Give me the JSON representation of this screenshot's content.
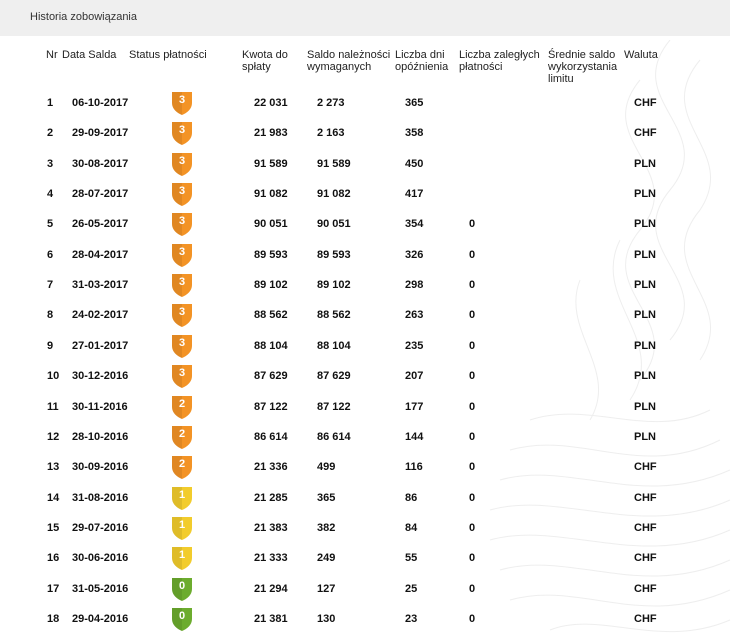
{
  "title": "Historia zobowiązania",
  "columns": {
    "nr": "Nr",
    "date": "Data Salda",
    "status": "Status płatności",
    "amount": [
      "Kwota do",
      "spłaty"
    ],
    "due": [
      "Saldo należności",
      "wymaganych"
    ],
    "days": [
      "Liczba dni",
      "opóźnienia"
    ],
    "overdue": [
      "Liczba zaległych",
      "płatności"
    ],
    "avg": [
      "Średnie saldo",
      "wykorzystania",
      "limitu"
    ],
    "currency": "Waluta"
  },
  "status_colors": {
    "3": "#f39325",
    "2": "#f39325",
    "1": "#f2cc2c",
    "0": "#6cac2e"
  },
  "rows": [
    {
      "nr": "1",
      "date": "06-10-2017",
      "status": "3",
      "amount": "22 031",
      "due": "2 273",
      "days": "365",
      "overdue": "",
      "avg": "",
      "currency": "CHF"
    },
    {
      "nr": "2",
      "date": "29-09-2017",
      "status": "3",
      "amount": "21 983",
      "due": "2 163",
      "days": "358",
      "overdue": "",
      "avg": "",
      "currency": "CHF"
    },
    {
      "nr": "3",
      "date": "30-08-2017",
      "status": "3",
      "amount": "91 589",
      "due": "91 589",
      "days": "450",
      "overdue": "",
      "avg": "",
      "currency": "PLN"
    },
    {
      "nr": "4",
      "date": "28-07-2017",
      "status": "3",
      "amount": "91 082",
      "due": "91 082",
      "days": "417",
      "overdue": "",
      "avg": "",
      "currency": "PLN"
    },
    {
      "nr": "5",
      "date": "26-05-2017",
      "status": "3",
      "amount": "90 051",
      "due": "90 051",
      "days": "354",
      "overdue": "0",
      "avg": "",
      "currency": "PLN"
    },
    {
      "nr": "6",
      "date": "28-04-2017",
      "status": "3",
      "amount": "89 593",
      "due": "89 593",
      "days": "326",
      "overdue": "0",
      "avg": "",
      "currency": "PLN"
    },
    {
      "nr": "7",
      "date": "31-03-2017",
      "status": "3",
      "amount": "89 102",
      "due": "89 102",
      "days": "298",
      "overdue": "0",
      "avg": "",
      "currency": "PLN"
    },
    {
      "nr": "8",
      "date": "24-02-2017",
      "status": "3",
      "amount": "88 562",
      "due": "88 562",
      "days": "263",
      "overdue": "0",
      "avg": "",
      "currency": "PLN"
    },
    {
      "nr": "9",
      "date": "27-01-2017",
      "status": "3",
      "amount": "88 104",
      "due": "88 104",
      "days": "235",
      "overdue": "0",
      "avg": "",
      "currency": "PLN"
    },
    {
      "nr": "10",
      "date": "30-12-2016",
      "status": "3",
      "amount": "87 629",
      "due": "87 629",
      "days": "207",
      "overdue": "0",
      "avg": "",
      "currency": "PLN"
    },
    {
      "nr": "11",
      "date": "30-11-2016",
      "status": "2",
      "amount": "87 122",
      "due": "87 122",
      "days": "177",
      "overdue": "0",
      "avg": "",
      "currency": "PLN"
    },
    {
      "nr": "12",
      "date": "28-10-2016",
      "status": "2",
      "amount": "86 614",
      "due": "86 614",
      "days": "144",
      "overdue": "0",
      "avg": "",
      "currency": "PLN"
    },
    {
      "nr": "13",
      "date": "30-09-2016",
      "status": "2",
      "amount": "21 336",
      "due": "499",
      "days": "116",
      "overdue": "0",
      "avg": "",
      "currency": "CHF"
    },
    {
      "nr": "14",
      "date": "31-08-2016",
      "status": "1",
      "amount": "21 285",
      "due": "365",
      "days": "86",
      "overdue": "0",
      "avg": "",
      "currency": "CHF"
    },
    {
      "nr": "15",
      "date": "29-07-2016",
      "status": "1",
      "amount": "21 383",
      "due": "382",
      "days": "84",
      "overdue": "0",
      "avg": "",
      "currency": "CHF"
    },
    {
      "nr": "16",
      "date": "30-06-2016",
      "status": "1",
      "amount": "21 333",
      "due": "249",
      "days": "55",
      "overdue": "0",
      "avg": "",
      "currency": "CHF"
    },
    {
      "nr": "17",
      "date": "31-05-2016",
      "status": "0",
      "amount": "21 294",
      "due": "127",
      "days": "25",
      "overdue": "0",
      "avg": "",
      "currency": "CHF"
    },
    {
      "nr": "18",
      "date": "29-04-2016",
      "status": "0",
      "amount": "21 381",
      "due": "130",
      "days": "23",
      "overdue": "0",
      "avg": "",
      "currency": "CHF"
    }
  ]
}
